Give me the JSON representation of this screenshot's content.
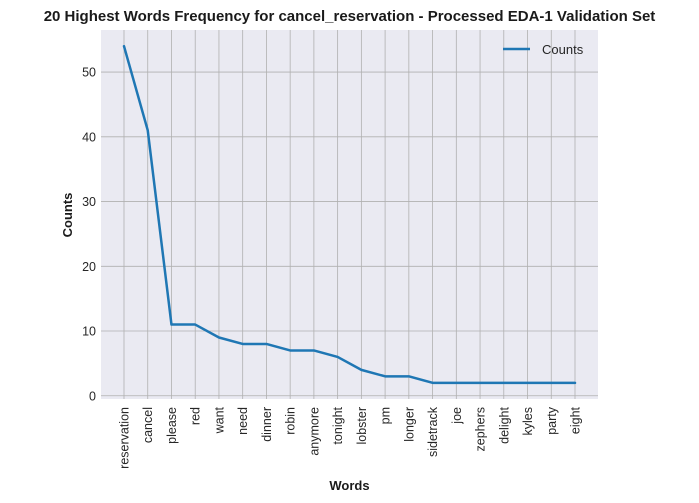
{
  "chart_data": {
    "type": "line",
    "title": "20 Highest Words Frequency for cancel_reservation - Processed EDA-1 Validation Set",
    "xlabel": "Words",
    "ylabel": "Counts",
    "categories": [
      "reservation",
      "cancel",
      "please",
      "red",
      "want",
      "need",
      "dinner",
      "robin",
      "anymore",
      "tonight",
      "lobster",
      "pm",
      "longer",
      "sidetrack",
      "joe",
      "zephers",
      "delight",
      "kyles",
      "party",
      "eight"
    ],
    "series": [
      {
        "name": "Counts",
        "color": "#1f77b4",
        "values": [
          54,
          41,
          11,
          11,
          9,
          8,
          8,
          7,
          7,
          6,
          4,
          3,
          3,
          2,
          2,
          2,
          2,
          2,
          2,
          2
        ]
      }
    ],
    "ylim": [
      -0.5,
      56.5
    ],
    "yticks": [
      0,
      10,
      20,
      30,
      40,
      50
    ],
    "grid": true,
    "legend": "top-right",
    "background": "#eaeaf2",
    "gridcolor": "#b0b0b0"
  }
}
